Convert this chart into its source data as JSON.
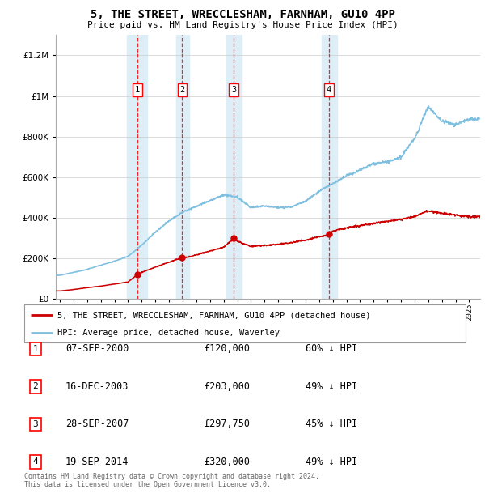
{
  "title": "5, THE STREET, WRECCLESHAM, FARNHAM, GU10 4PP",
  "subtitle": "Price paid vs. HM Land Registry's House Price Index (HPI)",
  "sales": [
    {
      "date_num": 2000.69,
      "price": 120000,
      "label": "1"
    },
    {
      "date_num": 2003.96,
      "price": 203000,
      "label": "2"
    },
    {
      "date_num": 2007.74,
      "price": 297750,
      "label": "3"
    },
    {
      "date_num": 2014.72,
      "price": 320000,
      "label": "4"
    }
  ],
  "sale_dates_str": [
    "07-SEP-2000",
    "16-DEC-2003",
    "28-SEP-2007",
    "19-SEP-2014"
  ],
  "sale_prices_str": [
    "£120,000",
    "£203,000",
    "£297,750",
    "£320,000"
  ],
  "sale_hpi_str": [
    "60% ↓ HPI",
    "49% ↓ HPI",
    "45% ↓ HPI",
    "49% ↓ HPI"
  ],
  "hpi_color": "#7fbfdf",
  "sale_color": "#cc0000",
  "highlight_color": "#ddeef7",
  "highlight_ranges": [
    [
      1999.9,
      2001.4
    ],
    [
      2003.5,
      2004.5
    ],
    [
      2007.2,
      2008.3
    ],
    [
      2014.2,
      2015.3
    ]
  ],
  "legend_label_sale": "5, THE STREET, WRECCLESHAM, FARNHAM, GU10 4PP (detached house)",
  "legend_label_hpi": "HPI: Average price, detached house, Waverley",
  "footer": "Contains HM Land Registry data © Crown copyright and database right 2024.\nThis data is licensed under the Open Government Licence v3.0.",
  "ylim": [
    0,
    1300000
  ],
  "xlim_start": 1994.7,
  "xlim_end": 2025.8,
  "hpi_anchors_x": [
    1995,
    1996,
    1997,
    1998,
    1999,
    2000,
    2001,
    2002,
    2003,
    2004,
    2005,
    2006,
    2007,
    2008,
    2009,
    2010,
    2011,
    2012,
    2013,
    2014,
    2015,
    2016,
    2017,
    2018,
    2019,
    2020,
    2021,
    2022,
    2023,
    2024,
    2025
  ],
  "hpi_anchors_y": [
    115000,
    130000,
    145000,
    165000,
    185000,
    210000,
    265000,
    330000,
    385000,
    430000,
    460000,
    490000,
    520000,
    510000,
    460000,
    465000,
    455000,
    460000,
    490000,
    540000,
    580000,
    620000,
    650000,
    680000,
    690000,
    710000,
    800000,
    960000,
    890000,
    870000,
    900000
  ],
  "sale_anchors_x": [
    1995,
    1996,
    1997,
    1998,
    1999,
    2000,
    2000.69,
    2001,
    2002,
    2003,
    2003.96,
    2004,
    2005,
    2006,
    2007,
    2007.74,
    2008,
    2009,
    2010,
    2011,
    2012,
    2013,
    2014,
    2014.72,
    2015,
    2016,
    2017,
    2018,
    2019,
    2020,
    2021,
    2022,
    2023,
    2024,
    2025
  ],
  "sale_anchors_y": [
    38000,
    45000,
    54000,
    62000,
    72000,
    83000,
    120000,
    130000,
    155000,
    180000,
    203000,
    200000,
    215000,
    235000,
    255000,
    297750,
    285000,
    260000,
    265000,
    272000,
    280000,
    292000,
    310000,
    320000,
    338000,
    355000,
    368000,
    378000,
    388000,
    398000,
    415000,
    440000,
    428000,
    418000,
    410000
  ]
}
